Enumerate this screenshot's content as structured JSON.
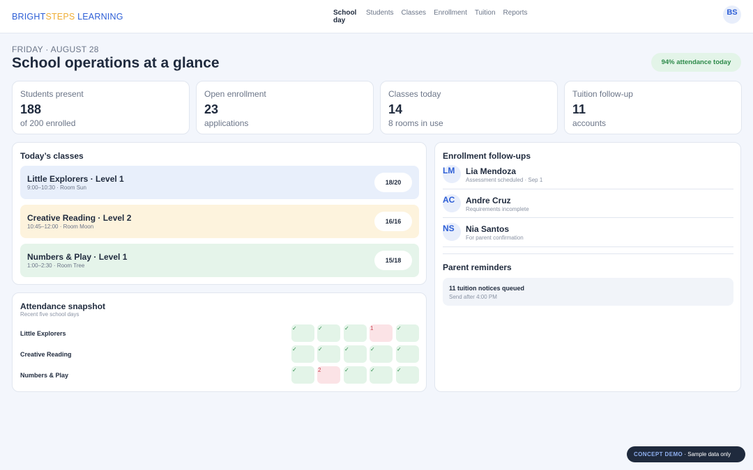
{
  "brand": {
    "part1": "BRIGHT",
    "part2": "STEPS",
    "part3": " LEARNING"
  },
  "nav": [
    {
      "label": "School day",
      "active": true
    },
    {
      "label": "Students"
    },
    {
      "label": "Classes"
    },
    {
      "label": "Enrollment"
    },
    {
      "label": "Tuition"
    },
    {
      "label": "Reports"
    }
  ],
  "user": {
    "initials": "BS"
  },
  "header": {
    "date": "FRIDAY · AUGUST 28",
    "title": "School operations at a glance",
    "attendance_pill": "94% attendance today"
  },
  "stats": [
    {
      "label": "Students present",
      "value": "188",
      "sub": "of 200 enrolled"
    },
    {
      "label": "Open enrollment",
      "value": "23",
      "sub": "applications"
    },
    {
      "label": "Classes today",
      "value": "14",
      "sub": "8 rooms in use"
    },
    {
      "label": "Tuition follow-up",
      "value": "11",
      "sub": "accounts"
    }
  ],
  "classes": {
    "title": "Today’s classes",
    "items": [
      {
        "name": "Little Explorers · Level 1",
        "meta": "9:00–10:30 · Room Sun",
        "count": "18/20",
        "color": "#e8effb"
      },
      {
        "name": "Creative Reading · Level 2",
        "meta": "10:45–12:00 · Room Moon",
        "count": "16/16",
        "color": "#fdf3dd"
      },
      {
        "name": "Numbers & Play · Level 1",
        "meta": "1:00–2:30 · Room Tree",
        "count": "15/18",
        "color": "#e5f4ea"
      }
    ]
  },
  "attendance": {
    "title": "Attendance snapshot",
    "subtitle": "Recent five school days",
    "colors": {
      "ok": "#e3f4e8",
      "miss": "#fbe3e6"
    },
    "rows": [
      {
        "label": "Little Explorers",
        "cells": [
          "✓",
          "✓",
          "✓",
          "1",
          "✓"
        ]
      },
      {
        "label": "Creative Reading",
        "cells": [
          "✓",
          "✓",
          "✓",
          "✓",
          "✓"
        ]
      },
      {
        "label": "Numbers & Play",
        "cells": [
          "✓",
          "2",
          "✓",
          "✓",
          "✓"
        ]
      }
    ]
  },
  "followups": {
    "title": "Enrollment follow-ups",
    "items": [
      {
        "initials": "LM",
        "name": "Lia Mendoza",
        "note": "Assessment scheduled · Sep 1"
      },
      {
        "initials": "AC",
        "name": "Andre Cruz",
        "note": "Requirements incomplete"
      },
      {
        "initials": "NS",
        "name": "Nia Santos",
        "note": "For parent confirmation"
      }
    ]
  },
  "reminders": {
    "title": "Parent reminders",
    "item": {
      "title": "11 tuition notices queued",
      "sub": "Send after 4:00 PM"
    }
  },
  "demo": {
    "tag": "CONCEPT DEMO",
    "text": " · Sample data only"
  }
}
